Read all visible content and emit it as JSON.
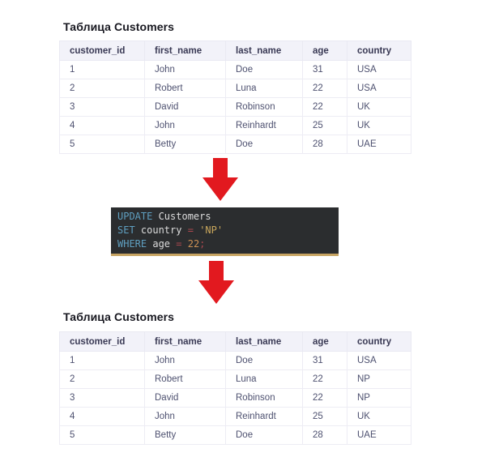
{
  "page": {
    "background": "#ffffff"
  },
  "arrow": {
    "color": "#e2191f"
  },
  "tables": {
    "before": {
      "title": "Таблица Customers",
      "columns": [
        "customer_id",
        "first_name",
        "last_name",
        "age",
        "country"
      ],
      "rows": [
        [
          "1",
          "John",
          "Doe",
          "31",
          "USA"
        ],
        [
          "2",
          "Robert",
          "Luna",
          "22",
          "USA"
        ],
        [
          "3",
          "David",
          "Robinson",
          "22",
          "UK"
        ],
        [
          "4",
          "John",
          "Reinhardt",
          "25",
          "UK"
        ],
        [
          "5",
          "Betty",
          "Doe",
          "28",
          "UAE"
        ]
      ]
    },
    "after": {
      "title": "Таблица Customers",
      "columns": [
        "customer_id",
        "first_name",
        "last_name",
        "age",
        "country"
      ],
      "rows": [
        [
          "1",
          "John",
          "Doe",
          "31",
          "USA"
        ],
        [
          "2",
          "Robert",
          "Luna",
          "22",
          "NP"
        ],
        [
          "3",
          "David",
          "Robinson",
          "22",
          "NP"
        ],
        [
          "4",
          "John",
          "Reinhardt",
          "25",
          "UK"
        ],
        [
          "5",
          "Betty",
          "Doe",
          "28",
          "UAE"
        ]
      ]
    }
  },
  "code": {
    "text": "UPDATE Customers\nSET country = 'NP'\nWHERE age = 22;",
    "lines": [
      [
        {
          "t": "UPDATE",
          "c": "keyword"
        },
        {
          "t": " Customers",
          "c": "plain"
        }
      ],
      [
        {
          "t": "SET",
          "c": "keyword"
        },
        {
          "t": " country ",
          "c": "plain"
        },
        {
          "t": "=",
          "c": "operator"
        },
        {
          "t": " ",
          "c": "plain"
        },
        {
          "t": "'NP'",
          "c": "string"
        }
      ],
      [
        {
          "t": "WHERE",
          "c": "keyword"
        },
        {
          "t": " age ",
          "c": "plain"
        },
        {
          "t": "=",
          "c": "operator"
        },
        {
          "t": " ",
          "c": "plain"
        },
        {
          "t": "22",
          "c": "number"
        },
        {
          "t": ";",
          "c": "operator"
        }
      ]
    ],
    "colors": {
      "keyword": "#5f9fc0",
      "plain": "#dcdcdc",
      "operator": "#a8474e",
      "string": "#c9a75c",
      "number": "#cd9154",
      "background": "#2b2d2f",
      "accent_border": "#c7a462"
    }
  }
}
